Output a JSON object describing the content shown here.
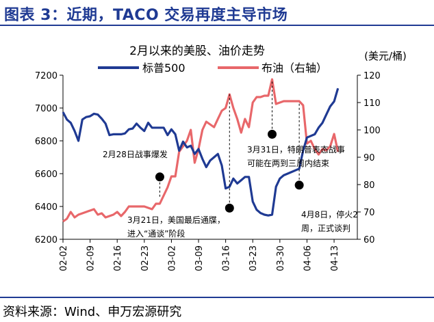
{
  "header": {
    "title": "图表 3：近期，TACO 交易再度主导市场"
  },
  "footer": {
    "source": "资料来源：Wind、申万宏源研究"
  },
  "chart_data": {
    "type": "line",
    "title": "2月以来的美股、油价走势",
    "right_unit": "(美元/桶)",
    "x_ticks": [
      "02-02",
      "02-09",
      "02-16",
      "02-23",
      "03-02",
      "03-09",
      "03-16",
      "03-23",
      "03-30",
      "04-06",
      "04-13"
    ],
    "x_range": [
      0,
      76
    ],
    "y_left": {
      "ticks": [
        6200,
        6400,
        6600,
        6800,
        7000,
        7200
      ],
      "range": [
        6200,
        7200
      ]
    },
    "y_right": {
      "ticks": [
        60,
        70,
        80,
        90,
        100,
        110,
        120
      ],
      "range": [
        60,
        120
      ]
    },
    "colors": {
      "sp500": "#1f3a93",
      "brent": "#e8676a"
    },
    "series": [
      {
        "name": "标普500",
        "axis": "left",
        "points": [
          [
            0,
            6975
          ],
          [
            1,
            6930
          ],
          [
            2,
            6910
          ],
          [
            3,
            6860
          ],
          [
            4,
            6800
          ],
          [
            5,
            6930
          ],
          [
            6,
            6945
          ],
          [
            7,
            6950
          ],
          [
            8,
            6965
          ],
          [
            9,
            6960
          ],
          [
            10,
            6935
          ],
          [
            11,
            6905
          ],
          [
            12,
            6835
          ],
          [
            13,
            6840
          ],
          [
            14,
            6840
          ],
          [
            15,
            6840
          ],
          [
            16,
            6845
          ],
          [
            17,
            6870
          ],
          [
            18,
            6875
          ],
          [
            19,
            6905
          ],
          [
            20,
            6880
          ],
          [
            21,
            6860
          ],
          [
            22,
            6910
          ],
          [
            23,
            6880
          ],
          [
            24,
            6880
          ],
          [
            25,
            6880
          ],
          [
            26,
            6880
          ],
          [
            27,
            6835
          ],
          [
            28,
            6870
          ],
          [
            29,
            6840
          ],
          [
            30,
            6740
          ],
          [
            31,
            6795
          ],
          [
            32,
            6760
          ],
          [
            33,
            6770
          ],
          [
            34,
            6720
          ],
          [
            35,
            6750
          ],
          [
            36,
            6690
          ],
          [
            37,
            6640
          ],
          [
            38,
            6680
          ],
          [
            39,
            6700
          ],
          [
            40,
            6720
          ],
          [
            41,
            6650
          ],
          [
            42,
            6510
          ],
          [
            43,
            6520
          ],
          [
            44,
            6570
          ],
          [
            45,
            6540
          ],
          [
            46,
            6560
          ],
          [
            47,
            6580
          ],
          [
            48,
            6580
          ],
          [
            49,
            6430
          ],
          [
            50,
            6380
          ],
          [
            51,
            6360
          ],
          [
            52,
            6350
          ],
          [
            53,
            6345
          ],
          [
            54,
            6350
          ],
          [
            55,
            6520
          ],
          [
            56,
            6570
          ],
          [
            57,
            6590
          ],
          [
            58,
            6600
          ],
          [
            59,
            6610
          ],
          [
            60,
            6620
          ],
          [
            61,
            6630
          ],
          [
            62,
            6740
          ],
          [
            63,
            6820
          ],
          [
            64,
            6830
          ],
          [
            65,
            6840
          ],
          [
            66,
            6880
          ],
          [
            67,
            6910
          ],
          [
            68,
            6960
          ],
          [
            69,
            7010
          ],
          [
            70,
            7040
          ],
          [
            71,
            7120
          ]
        ]
      },
      {
        "name": "布油（右轴）",
        "axis": "right",
        "points": [
          [
            0,
            66.5
          ],
          [
            1,
            67.5
          ],
          [
            2,
            70
          ],
          [
            3,
            68
          ],
          [
            4,
            69
          ],
          [
            5,
            69.5
          ],
          [
            6,
            70
          ],
          [
            7,
            70.5
          ],
          [
            8,
            71
          ],
          [
            9,
            69
          ],
          [
            10,
            69.5
          ],
          [
            11,
            68
          ],
          [
            12,
            68.5
          ],
          [
            13,
            69
          ],
          [
            14,
            70
          ],
          [
            15,
            68.5
          ],
          [
            16,
            70
          ],
          [
            17,
            72
          ],
          [
            18,
            72
          ],
          [
            19,
            72
          ],
          [
            20,
            72
          ],
          [
            21,
            72
          ],
          [
            22,
            71.5
          ],
          [
            23,
            71
          ],
          [
            24,
            73
          ],
          [
            25,
            73
          ],
          [
            26,
            76
          ],
          [
            27,
            79
          ],
          [
            28,
            83
          ],
          [
            29,
            83
          ],
          [
            30,
            92
          ],
          [
            31,
            94
          ],
          [
            32,
            96
          ],
          [
            33,
            100
          ],
          [
            34,
            88
          ],
          [
            35,
            93
          ],
          [
            36,
            100
          ],
          [
            37,
            103
          ],
          [
            38,
            102
          ],
          [
            39,
            101
          ],
          [
            40,
            104
          ],
          [
            41,
            107
          ],
          [
            42,
            108
          ],
          [
            43,
            113
          ],
          [
            44,
            108
          ],
          [
            45,
            104
          ],
          [
            46,
            99
          ],
          [
            47,
            104
          ],
          [
            48,
            101
          ],
          [
            49,
            110
          ],
          [
            50,
            112
          ],
          [
            51,
            112
          ],
          [
            52,
            112.5
          ],
          [
            53,
            112.5
          ],
          [
            54,
            118.5
          ],
          [
            55,
            109.5
          ],
          [
            56,
            110
          ],
          [
            57,
            110.5
          ],
          [
            58,
            110.5
          ],
          [
            59,
            110.5
          ],
          [
            60,
            110.5
          ],
          [
            61,
            110.5
          ],
          [
            62,
            109
          ],
          [
            63,
            95
          ],
          [
            64,
            96
          ],
          [
            65,
            93
          ],
          [
            66,
            91
          ],
          [
            67,
            93
          ],
          [
            68,
            92.5
          ],
          [
            69,
            94
          ],
          [
            70,
            98.5
          ],
          [
            71,
            92
          ]
        ]
      }
    ],
    "annotations": [
      {
        "text_lines": [
          "2月28日战事爆发"
        ],
        "marker_x": 25,
        "marker_y_left": 6580
      },
      {
        "text_lines": [
          "3月21日，美国最后通牒，",
          "进入“通谈”阶段"
        ],
        "marker_x": 43,
        "marker_y_left": 6390
      },
      {
        "text_lines": [
          "3月31日，特朗普表态战事",
          "可能在两到三周内结束"
        ],
        "marker_x": 54,
        "marker_y_left": 6840
      },
      {
        "text_lines": [
          "4月8日，停火2",
          "周，正式谈判"
        ],
        "marker_x": 61,
        "marker_y_left": 6530
      }
    ]
  }
}
